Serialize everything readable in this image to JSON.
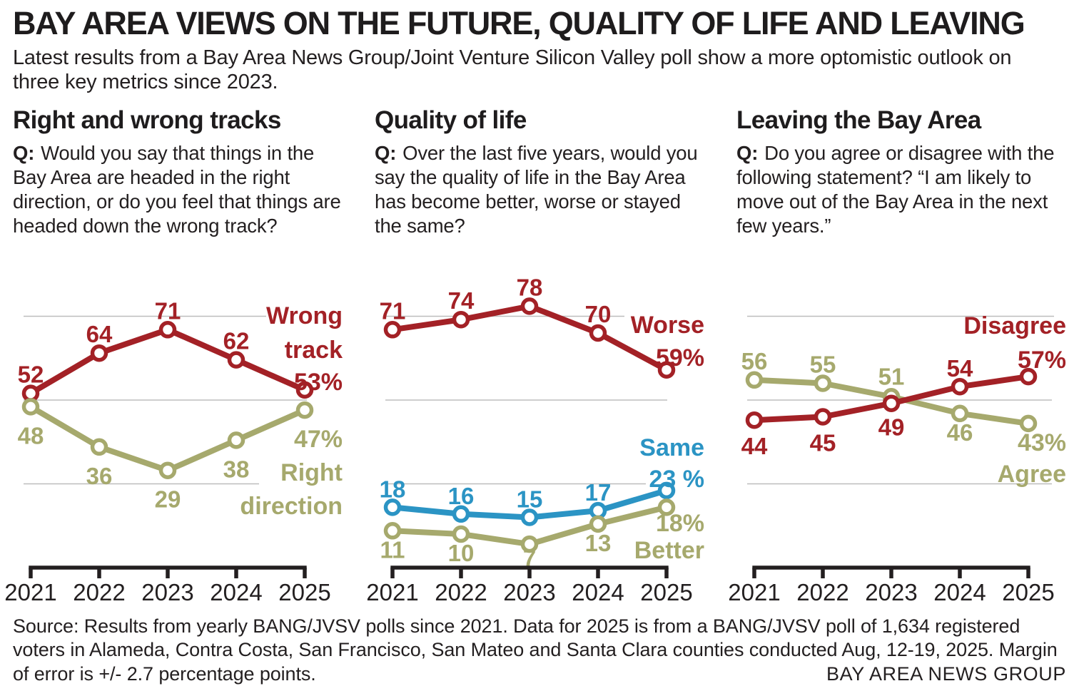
{
  "header": {
    "title": "BAY AREA VIEWS ON THE FUTURE, QUALITY OF LIFE AND LEAVING",
    "subtitle": "Latest results from a Bay Area News Group/Joint Venture Silicon Valley poll show a more optomistic outlook on three key metrics since 2023."
  },
  "colors": {
    "red": "#A32126",
    "olive": "#A6A96D",
    "blue": "#2B94C4",
    "text": "#231F20",
    "grid": "#BDBDBD",
    "axis": "#231F20"
  },
  "source": {
    "text": "Source: Results from yearly BANG/JVSV polls since 2021. Data for 2025 is from a BANG/JVSV poll of 1,634 registered voters in Alameda, Contra Costa, San Francisco, San Mateo and Santa Clara counties conducted Aug, 12-19, 2025. Margin of error is +/- 2.7 percentage points.",
    "credit": "BAY AREA NEWS GROUP"
  },
  "chart_data": [
    {
      "type": "line",
      "title": "Right and wrong tracks",
      "question_prefix": "Q:",
      "question": "Would you say that things in the Bay Area are headed in the right direction, or do you feel that things are headed down the wrong track?",
      "x": [
        "2021",
        "2022",
        "2023",
        "2024",
        "2025"
      ],
      "ylim": [
        0,
        85
      ],
      "gridlines": [
        25,
        50,
        75
      ],
      "legend_position": "right-of-line-end",
      "series": [
        {
          "name": "Wrong track",
          "color": "#A32126",
          "values": [
            52,
            64,
            71,
            62,
            53
          ],
          "point_labels": [
            "52",
            "64",
            "71",
            "62",
            ""
          ],
          "end_label_lines": [
            "Wrong",
            "track",
            "53%"
          ]
        },
        {
          "name": "Right direction",
          "color": "#A6A96D",
          "values": [
            48,
            36,
            29,
            38,
            47
          ],
          "point_labels": [
            "48",
            "36",
            "29",
            "38",
            ""
          ],
          "end_label_lines": [
            "47%",
            "Right",
            "direction"
          ]
        }
      ]
    },
    {
      "type": "line",
      "title": "Quality of life",
      "question_prefix": "Q:",
      "question": "Over the last five years, would you say the quality of life in the Bay Area has become better, worse or stayed the same?",
      "x": [
        "2021",
        "2022",
        "2023",
        "2024",
        "2025"
      ],
      "ylim": [
        0,
        85
      ],
      "gridlines": [
        25,
        50,
        75
      ],
      "legend_position": "right-of-line-end",
      "series": [
        {
          "name": "Worse",
          "color": "#A32126",
          "values": [
            71,
            74,
            78,
            70,
            59
          ],
          "point_labels": [
            "71",
            "74",
            "78",
            "70",
            ""
          ],
          "end_label_lines": [
            "Worse",
            "59%"
          ]
        },
        {
          "name": "Same",
          "color": "#2B94C4",
          "values": [
            18,
            16,
            15,
            17,
            23
          ],
          "point_labels": [
            "18",
            "16",
            "15",
            "17",
            ""
          ],
          "end_label_lines": [
            "Same",
            "23 %"
          ]
        },
        {
          "name": "Better",
          "color": "#A6A96D",
          "values": [
            11,
            10,
            7,
            13,
            18
          ],
          "point_labels": [
            "11",
            "10",
            "7",
            "13",
            ""
          ],
          "end_label_lines": [
            "18%",
            "Better"
          ]
        }
      ]
    },
    {
      "type": "line",
      "title": "Leaving the Bay Area",
      "question_prefix": "Q:",
      "question": "Do you agree or disagree with the following statement? “I am likely to move out of the Bay Area in the next few years.”",
      "x": [
        "2021",
        "2022",
        "2023",
        "2024",
        "2025"
      ],
      "ylim": [
        0,
        85
      ],
      "gridlines": [
        25,
        50,
        75
      ],
      "legend_position": "right-of-line-end",
      "series": [
        {
          "name": "Agree",
          "color": "#A6A96D",
          "values": [
            56,
            55,
            51,
            46,
            43
          ],
          "point_labels": [
            "56",
            "55",
            "51",
            "46",
            ""
          ],
          "end_label_lines": [
            "43%",
            "Agree"
          ]
        },
        {
          "name": "Disagree",
          "color": "#A32126",
          "values": [
            44,
            45,
            49,
            54,
            57
          ],
          "point_labels": [
            "44",
            "45",
            "49",
            "54",
            ""
          ],
          "end_label_lines": [
            "Disagree",
            "57%"
          ]
        }
      ]
    }
  ]
}
